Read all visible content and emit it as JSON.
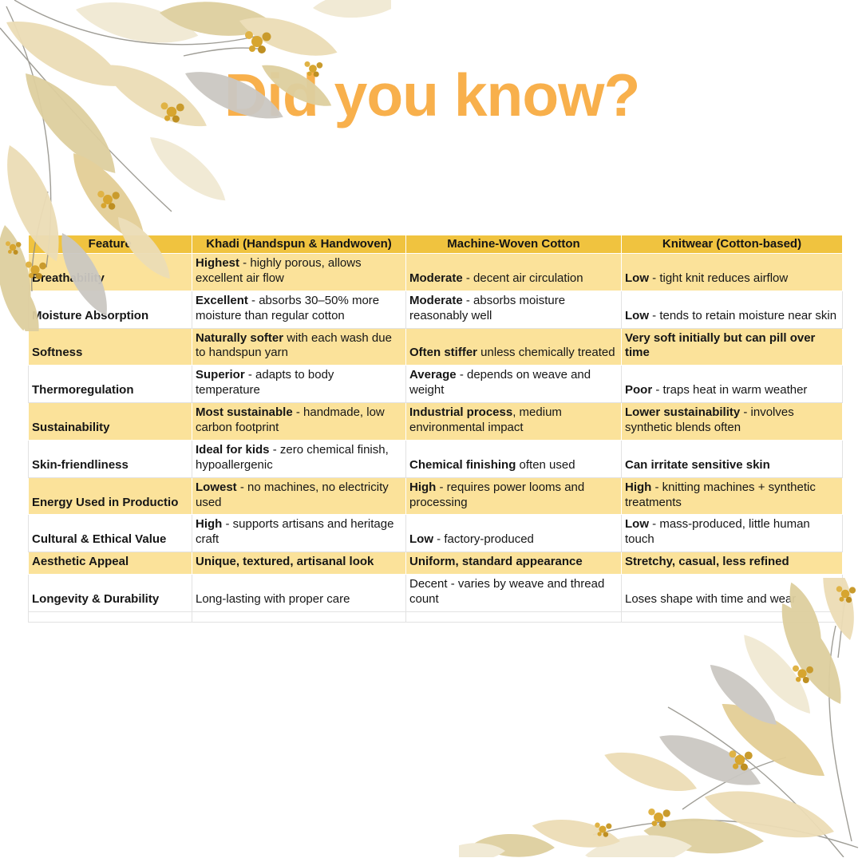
{
  "palette": {
    "title_color": "#F8B04C",
    "header_bg": "#F0C33F",
    "row_yellow": "#FBE29A",
    "row_white": "#FFFFFF",
    "grid_line": "#E2E2E2",
    "text_color": "#161616",
    "leaf_cream": "#ECDDB6",
    "leaf_pale": "#F1E9D3",
    "leaf_tan": "#DECF9F",
    "leaf_gray": "#CBC8C2",
    "leaf_gold": "#E3CE96",
    "berry_gold": "#D7A52F",
    "stem_gray": "#8F8D84"
  },
  "title": "Did you know?",
  "decorations": [
    {
      "name": "watercolor-leaves-top-left"
    },
    {
      "name": "watercolor-leaves-bottom-right"
    }
  ],
  "table": {
    "headers": [
      "Feature",
      "Khadi (Handspun & Handwoven)",
      "Machine-Woven Cotton",
      "Knitwear (Cotton-based)"
    ],
    "rows": [
      {
        "feature": "Breathability",
        "shade": "yellow",
        "cells": [
          [
            {
              "t": " Highest",
              "b": true
            },
            {
              "t": " - highly porous, allows excellent air flow",
              "b": false
            }
          ],
          [
            {
              "t": "Moderate",
              "b": true
            },
            {
              "t": " - decent air circulation",
              "b": false
            }
          ],
          [
            {
              "t": "Low",
              "b": true
            },
            {
              "t": " - tight knit reduces airflow",
              "b": false
            }
          ]
        ]
      },
      {
        "feature": "Moisture Absorption",
        "shade": "white",
        "cells": [
          [
            {
              "t": "Excellent",
              "b": true
            },
            {
              "t": " - absorbs 30–50% more moisture than regular cotton",
              "b": false
            }
          ],
          [
            {
              "t": "Moderate",
              "b": true
            },
            {
              "t": " - absorbs moisture reasonably well",
              "b": false
            }
          ],
          [
            {
              "t": "Low",
              "b": true
            },
            {
              "t": " - tends to retain moisture near skin",
              "b": false
            }
          ]
        ]
      },
      {
        "feature": "Softness",
        "shade": "yellow",
        "cells": [
          [
            {
              "t": "Naturally softer",
              "b": true
            },
            {
              "t": " with each wash due to handspun yarn",
              "b": false
            }
          ],
          [
            {
              "t": "Often stiffer",
              "b": true
            },
            {
              "t": " unless chemically treated",
              "b": false
            }
          ],
          [
            {
              "t": "Very soft initially but can pill over time",
              "b": true
            }
          ]
        ]
      },
      {
        "feature": "Thermoregulation",
        "shade": "white",
        "cells": [
          [
            {
              "t": "Superior",
              "b": true
            },
            {
              "t": " - adapts to body temperature",
              "b": false
            }
          ],
          [
            {
              "t": "Average",
              "b": true
            },
            {
              "t": " - depends on weave and weight",
              "b": false
            }
          ],
          [
            {
              "t": "Poor",
              "b": true
            },
            {
              "t": " - traps heat in warm weather",
              "b": false
            }
          ]
        ]
      },
      {
        "feature": "Sustainability",
        "shade": "yellow",
        "cells": [
          [
            {
              "t": "Most sustainable",
              "b": true
            },
            {
              "t": " - handmade, low carbon footprint",
              "b": false
            }
          ],
          [
            {
              "t": "Industrial process",
              "b": true
            },
            {
              "t": ", medium environmental impact",
              "b": false
            }
          ],
          [
            {
              "t": "Lower sustainability",
              "b": true
            },
            {
              "t": " - involves synthetic blends often",
              "b": false
            }
          ]
        ]
      },
      {
        "feature": "Skin-friendliness",
        "shade": "white",
        "cells": [
          [
            {
              "t": "Ideal for kids",
              "b": true
            },
            {
              "t": " - zero chemical finish, hypoallergenic",
              "b": false
            }
          ],
          [
            {
              "t": "Chemical finishing",
              "b": true
            },
            {
              "t": " often used",
              "b": false
            }
          ],
          [
            {
              "t": "Can irritate sensitive skin",
              "b": true
            }
          ]
        ]
      },
      {
        "feature": "Energy Used in Productio",
        "shade": "yellow",
        "cells": [
          [
            {
              "t": "Lowest",
              "b": true
            },
            {
              "t": " - no machines, no electricity used",
              "b": false
            }
          ],
          [
            {
              "t": "High",
              "b": true
            },
            {
              "t": " -  requires power looms and processing",
              "b": false
            }
          ],
          [
            {
              "t": "High",
              "b": true
            },
            {
              "t": " - knitting machines + synthetic treatments",
              "b": false
            }
          ]
        ]
      },
      {
        "feature": "Cultural & Ethical Value",
        "shade": "white",
        "cells": [
          [
            {
              "t": "High",
              "b": true
            },
            {
              "t": " - supports artisans and heritage craft",
              "b": false
            }
          ],
          [
            {
              "t": "Low",
              "b": true
            },
            {
              "t": " -  factory-produced",
              "b": false
            }
          ],
          [
            {
              "t": "Low",
              "b": true
            },
            {
              "t": " - mass-produced, little human touch",
              "b": false
            }
          ]
        ]
      },
      {
        "feature": "Aesthetic Appeal",
        "shade": "yellow",
        "cells": [
          [
            {
              "t": "Unique, textured, artisanal look",
              "b": true
            }
          ],
          [
            {
              "t": "Uniform, standard appearance",
              "b": true
            }
          ],
          [
            {
              "t": "Stretchy, casual, less refined",
              "b": true
            }
          ]
        ]
      },
      {
        "feature": "Longevity & Durability",
        "shade": "white",
        "cells": [
          [
            {
              "t": "Long-lasting with proper care",
              "b": false
            }
          ],
          [
            {
              "t": "Decent -  varies by weave and thread count",
              "b": false
            }
          ],
          [
            {
              "t": "Loses shape with time and wear",
              "b": false
            }
          ]
        ]
      },
      {
        "feature": "",
        "shade": "white",
        "blank": true,
        "cells": [
          [],
          [],
          []
        ]
      }
    ]
  }
}
